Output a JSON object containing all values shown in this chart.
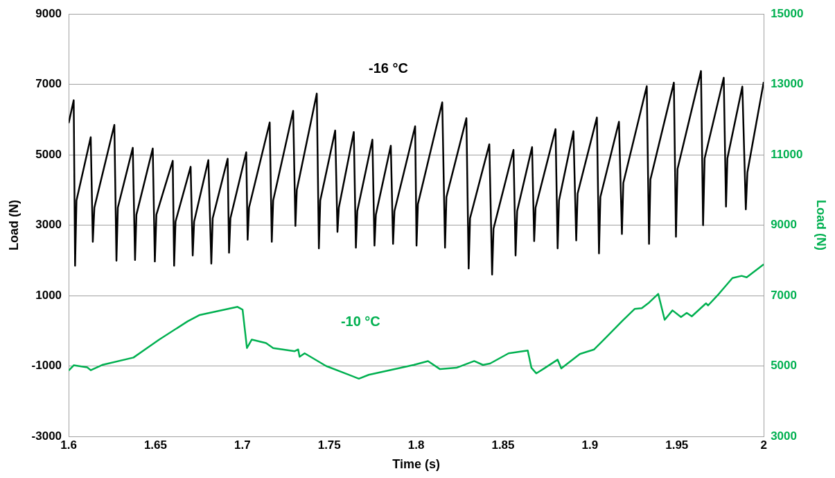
{
  "chart_data": {
    "type": "line",
    "xlabel": "Time (s)",
    "ylabel": "Load (N)",
    "y2label": "Load (N)",
    "xlim": [
      1.6,
      2
    ],
    "xticks": [
      1.6,
      1.65,
      1.7,
      1.75,
      1.8,
      1.85,
      1.9,
      1.95,
      2
    ],
    "ylim": [
      -3000,
      9000
    ],
    "yticks": [
      -3000,
      -1000,
      1000,
      3000,
      5000,
      7000,
      9000
    ],
    "y2lim": [
      3000,
      15000
    ],
    "y2ticks": [
      3000,
      5000,
      7000,
      9000,
      11000,
      13000,
      15000
    ],
    "grid": "y",
    "legend": false,
    "marker": "none",
    "line_style": "solid",
    "series": [
      {
        "name": "-16 °C",
        "color": "#000000",
        "x": [
          1.6,
          1.6029,
          1.6037,
          1.6045,
          1.6127,
          1.6139,
          1.6148,
          1.6263,
          1.6275,
          1.6283,
          1.6369,
          1.6382,
          1.639,
          1.6484,
          1.6496,
          1.6505,
          1.6599,
          1.6607,
          1.6615,
          1.6702,
          1.6714,
          1.6722,
          1.6804,
          1.6821,
          1.6829,
          1.6915,
          1.6923,
          1.6931,
          1.7022,
          1.703,
          1.7038,
          1.7157,
          1.7169,
          1.7177,
          1.7292,
          1.7305,
          1.7313,
          1.7428,
          1.744,
          1.7448,
          1.7534,
          1.7547,
          1.7555,
          1.7641,
          1.7653,
          1.7661,
          1.7748,
          1.776,
          1.7768,
          1.7854,
          1.7867,
          1.7875,
          1.7994,
          1.8002,
          1.801,
          1.815,
          1.8166,
          1.8174,
          1.8289,
          1.8302,
          1.831,
          1.8421,
          1.8437,
          1.8445,
          1.856,
          1.8572,
          1.8581,
          1.8667,
          1.8679,
          1.8687,
          1.8802,
          1.8814,
          1.8822,
          1.8905,
          1.8921,
          1.8929,
          1.904,
          1.9052,
          1.906,
          1.9167,
          1.9184,
          1.9192,
          1.9327,
          1.934,
          1.9348,
          1.9483,
          1.9495,
          1.9504,
          1.9639,
          1.9651,
          1.966,
          1.977,
          1.9783,
          1.9791,
          1.9877,
          1.9897,
          1.9906,
          2.0
        ],
        "values": [
          5900,
          6550,
          1850,
          3700,
          5500,
          2530,
          3500,
          5850,
          1990,
          3500,
          5200,
          2010,
          3300,
          5180,
          1970,
          3300,
          4830,
          1850,
          3100,
          4660,
          2140,
          3100,
          4850,
          1910,
          3200,
          4890,
          2220,
          3200,
          5070,
          2590,
          3500,
          5920,
          2530,
          3700,
          6250,
          2980,
          4000,
          6740,
          2340,
          3700,
          5690,
          2810,
          3500,
          5650,
          2360,
          3400,
          5430,
          2420,
          3300,
          5260,
          2470,
          3400,
          5810,
          2420,
          3600,
          6490,
          2360,
          3800,
          6040,
          1770,
          3200,
          5300,
          1600,
          2900,
          5140,
          2140,
          3400,
          5220,
          2550,
          3500,
          5730,
          2340,
          3700,
          5670,
          2570,
          3900,
          6060,
          2200,
          3800,
          5940,
          2750,
          4200,
          6950,
          2470,
          4300,
          7050,
          2670,
          4600,
          7380,
          3000,
          4900,
          7190,
          3530,
          4900,
          6940,
          3450,
          4500,
          7070
        ]
      },
      {
        "name": "-10 °C",
        "color": "#00b050",
        "axis": "y2",
        "x": [
          1.6,
          1.6029,
          1.6107,
          1.6127,
          1.6193,
          1.6373,
          1.6521,
          1.6685,
          1.6755,
          1.6972,
          1.7001,
          1.7026,
          1.7054,
          1.7136,
          1.7177,
          1.7301,
          1.7321,
          1.7329,
          1.7358,
          1.7481,
          1.767,
          1.7727,
          1.7986,
          1.8068,
          1.8137,
          1.8232,
          1.8334,
          1.8384,
          1.8425,
          1.8532,
          1.8642,
          1.8663,
          1.8691,
          1.8736,
          1.8814,
          1.8835,
          1.8942,
          1.9024,
          1.9081,
          1.9188,
          1.9257,
          1.9298,
          1.934,
          1.9393,
          1.943,
          1.9475,
          1.9524,
          1.9557,
          1.9586,
          1.9668,
          1.968,
          1.9742,
          1.982,
          1.9873,
          1.9902,
          2.0
        ],
        "values": [
          4870,
          5020,
          4960,
          4880,
          5030,
          5240,
          5750,
          6270,
          6450,
          6680,
          6600,
          5510,
          5750,
          5650,
          5510,
          5420,
          5470,
          5260,
          5360,
          5000,
          4640,
          4750,
          5030,
          5140,
          4910,
          4950,
          5140,
          5030,
          5070,
          5360,
          5440,
          4950,
          4790,
          4930,
          5180,
          4930,
          5340,
          5470,
          5750,
          6290,
          6620,
          6640,
          6800,
          7050,
          6310,
          6580,
          6390,
          6510,
          6410,
          6780,
          6720,
          7050,
          7500,
          7560,
          7520,
          7890
        ]
      }
    ]
  }
}
